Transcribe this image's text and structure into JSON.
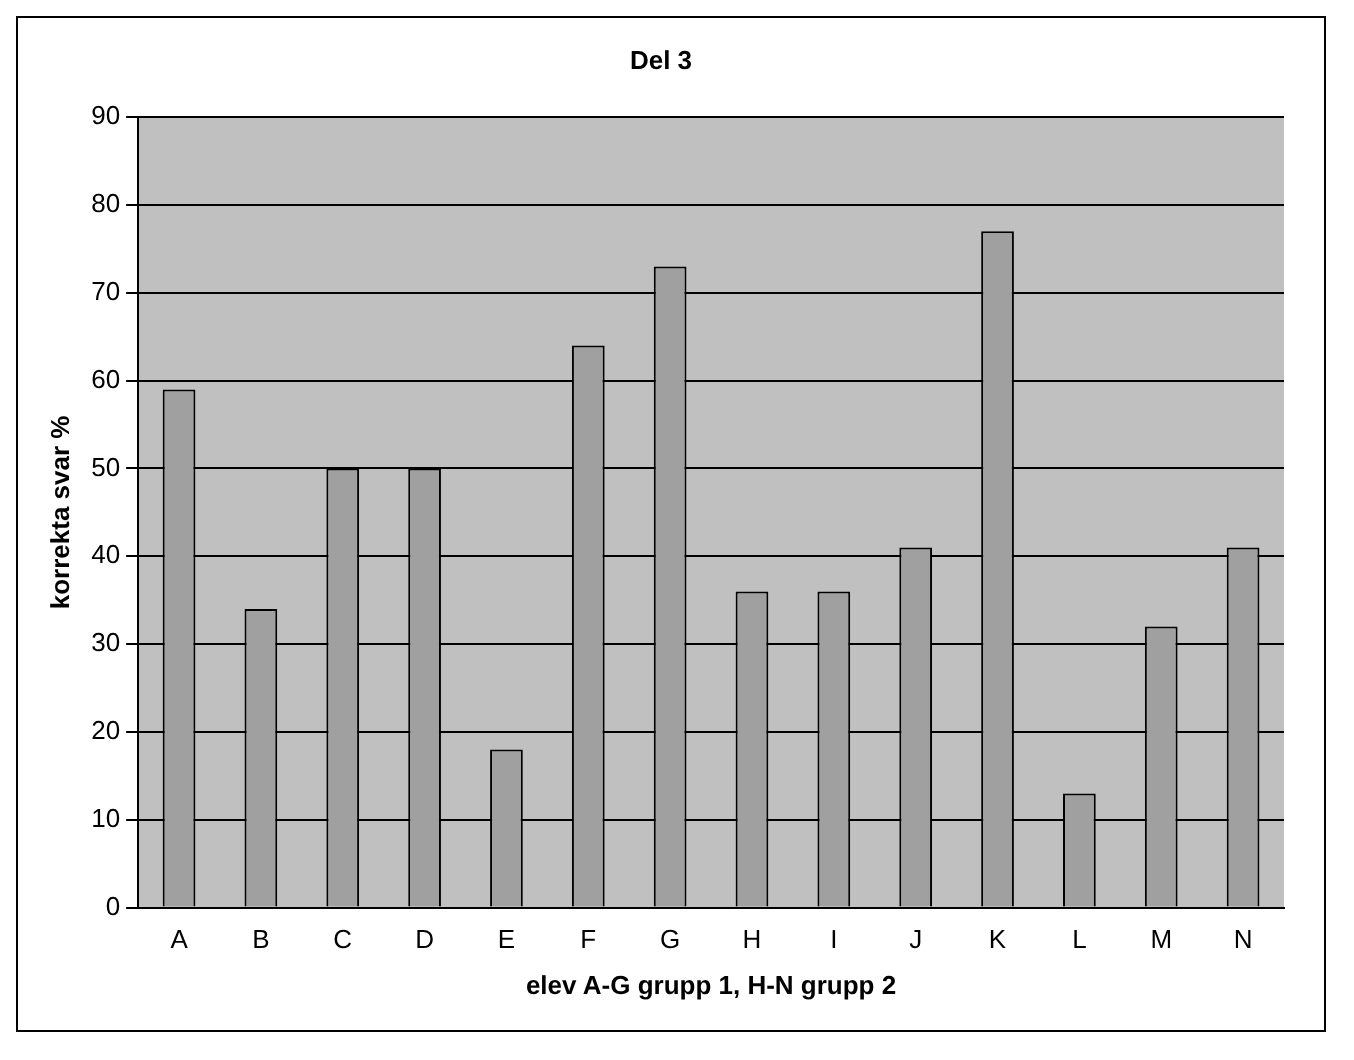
{
  "chart_data": {
    "type": "bar",
    "title": "Del 3",
    "xlabel": "elev A-G grupp 1, H-N grupp 2",
    "ylabel": "korrekta svar %",
    "categories": [
      "A",
      "B",
      "C",
      "D",
      "E",
      "F",
      "G",
      "H",
      "I",
      "J",
      "K",
      "L",
      "M",
      "N"
    ],
    "values": [
      59,
      34,
      50,
      50,
      18,
      64,
      73,
      36,
      36,
      41,
      77,
      13,
      32,
      41
    ],
    "color": "#a0a0a0",
    "ylim": [
      0,
      90
    ],
    "yticks": [
      0,
      10,
      20,
      30,
      40,
      50,
      60,
      70,
      80,
      90
    ],
    "grid": "y"
  }
}
